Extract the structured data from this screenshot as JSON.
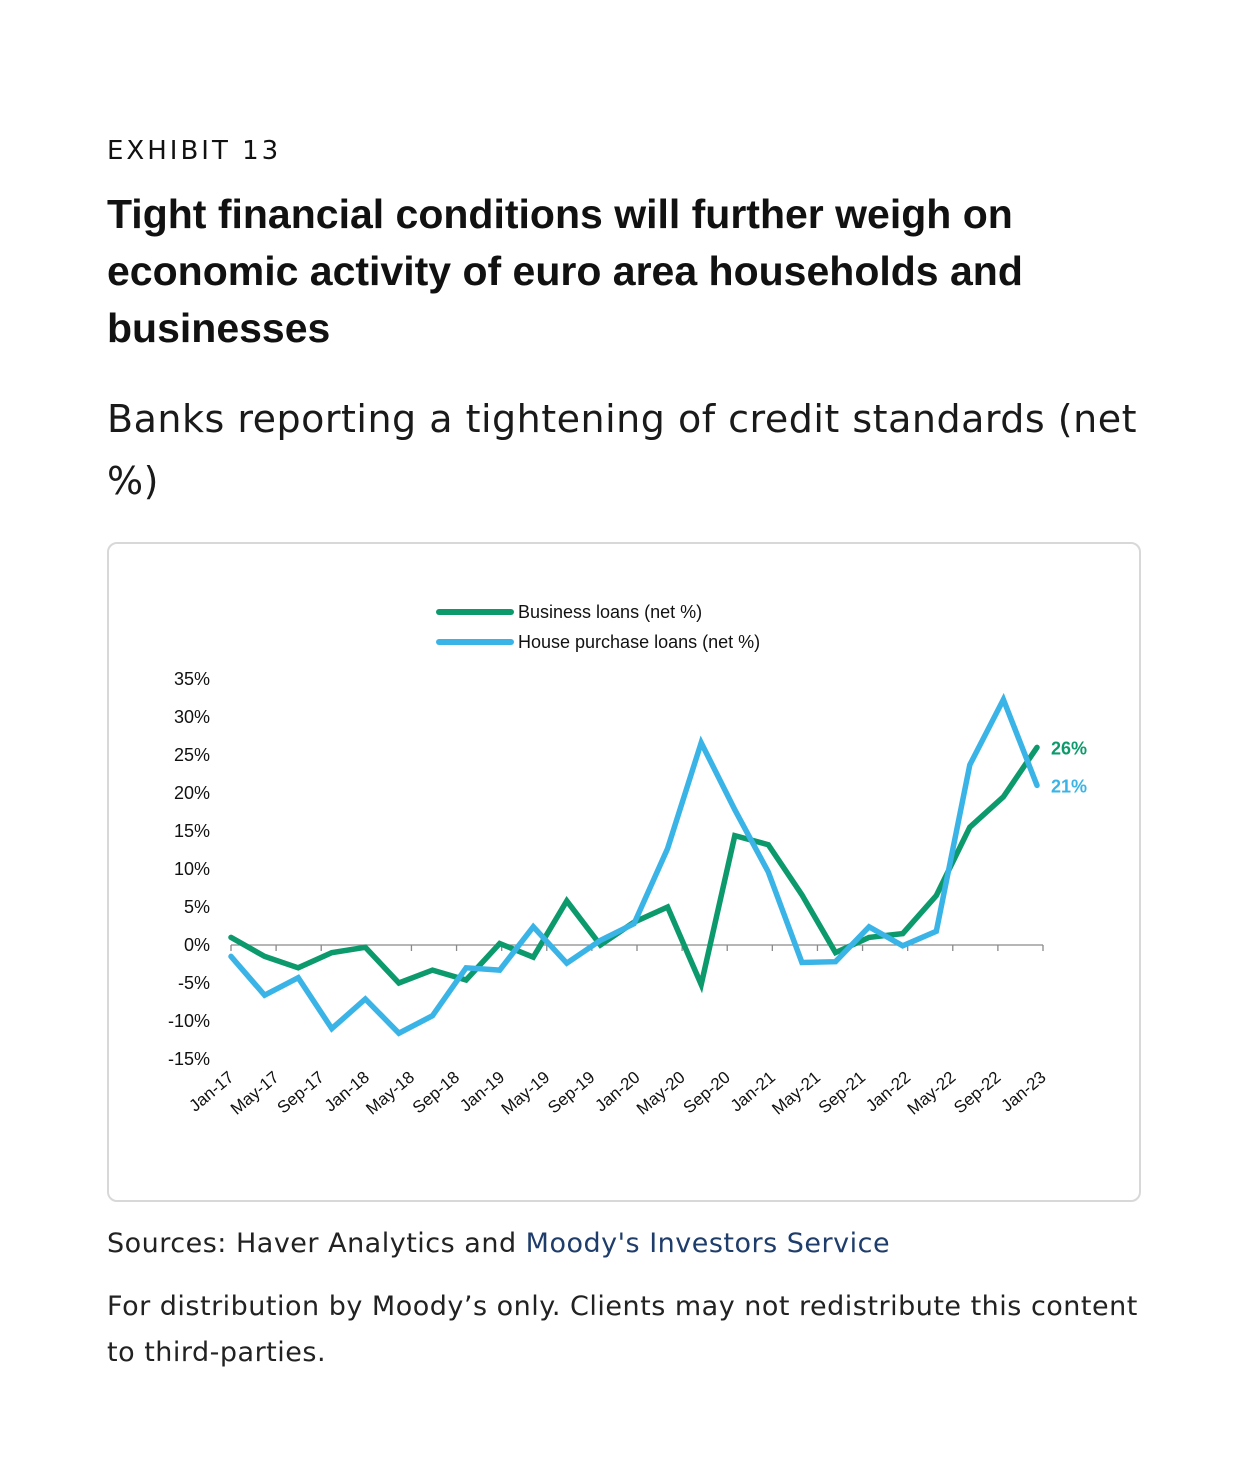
{
  "header": {
    "exhibit": "EXHIBIT 13",
    "headline": "Tight financial conditions will further weigh on economic activity of euro area households and businesses",
    "subtitle": "Banks reporting a tightening of credit standards (net %)"
  },
  "footer": {
    "sources_prefix": "Sources: Haver Analytics and ",
    "sources_link": "Moody's Investors Service",
    "note": "For distribution by Moody’s only. Clients may not redistribute this content to third-parties."
  },
  "chart_data": {
    "type": "line",
    "title": "",
    "xlabel": "",
    "ylabel": "",
    "ylim": [
      -15,
      35
    ],
    "yticks": [
      35,
      30,
      25,
      20,
      15,
      10,
      5,
      0,
      -5,
      -10,
      -15
    ],
    "ytick_labels": [
      "35%",
      "30%",
      "25%",
      "20%",
      "15%",
      "10%",
      "5%",
      "0%",
      "-5%",
      "-10%",
      "-15%"
    ],
    "x_tick_labels": [
      "Jan-17",
      "May-17",
      "Sep-17",
      "Jan-18",
      "May-18",
      "Sep-18",
      "Jan-19",
      "May-19",
      "Sep-19",
      "Jan-20",
      "May-20",
      "Sep-20",
      "Jan-21",
      "May-21",
      "Sep-21",
      "Jan-22",
      "May-22",
      "Sep-22",
      "Jan-23"
    ],
    "x": [
      "Q1-17",
      "Q2-17",
      "Q3-17",
      "Q4-17",
      "Q1-18",
      "Q2-18",
      "Q3-18",
      "Q4-18",
      "Q1-19",
      "Q2-19",
      "Q3-19",
      "Q4-19",
      "Q1-20",
      "Q2-20",
      "Q3-20",
      "Q4-20",
      "Q1-21",
      "Q2-21",
      "Q3-21",
      "Q4-21",
      "Q1-22",
      "Q2-22",
      "Q3-22",
      "Q4-22",
      "Q1-23"
    ],
    "legend_position": "top-center",
    "grid": false,
    "series": [
      {
        "name": "Business loans (net %)",
        "color": "#0c9a6c",
        "values": [
          1,
          -1.5,
          -3,
          -1,
          -0.3,
          -5,
          -3.3,
          -4.6,
          0.2,
          -1.6,
          5.8,
          0,
          3,
          5,
          -5.2,
          14.4,
          13.2,
          6.6,
          -1,
          1,
          1.5,
          6.5,
          15.5,
          19.5,
          26
        ],
        "end_label": "26%"
      },
      {
        "name": "House purchase loans (net %)",
        "color": "#3ab4e6",
        "values": [
          -1.5,
          -6.6,
          -4.3,
          -11,
          -7.1,
          -11.6,
          -9.3,
          -3,
          -3.3,
          2.4,
          -2.4,
          0.6,
          2.8,
          12.7,
          26.6,
          17.8,
          9.6,
          -2.3,
          -2.2,
          2.4,
          -0.1,
          1.8,
          23.7,
          32.3,
          21
        ],
        "end_label": "21%"
      }
    ]
  }
}
